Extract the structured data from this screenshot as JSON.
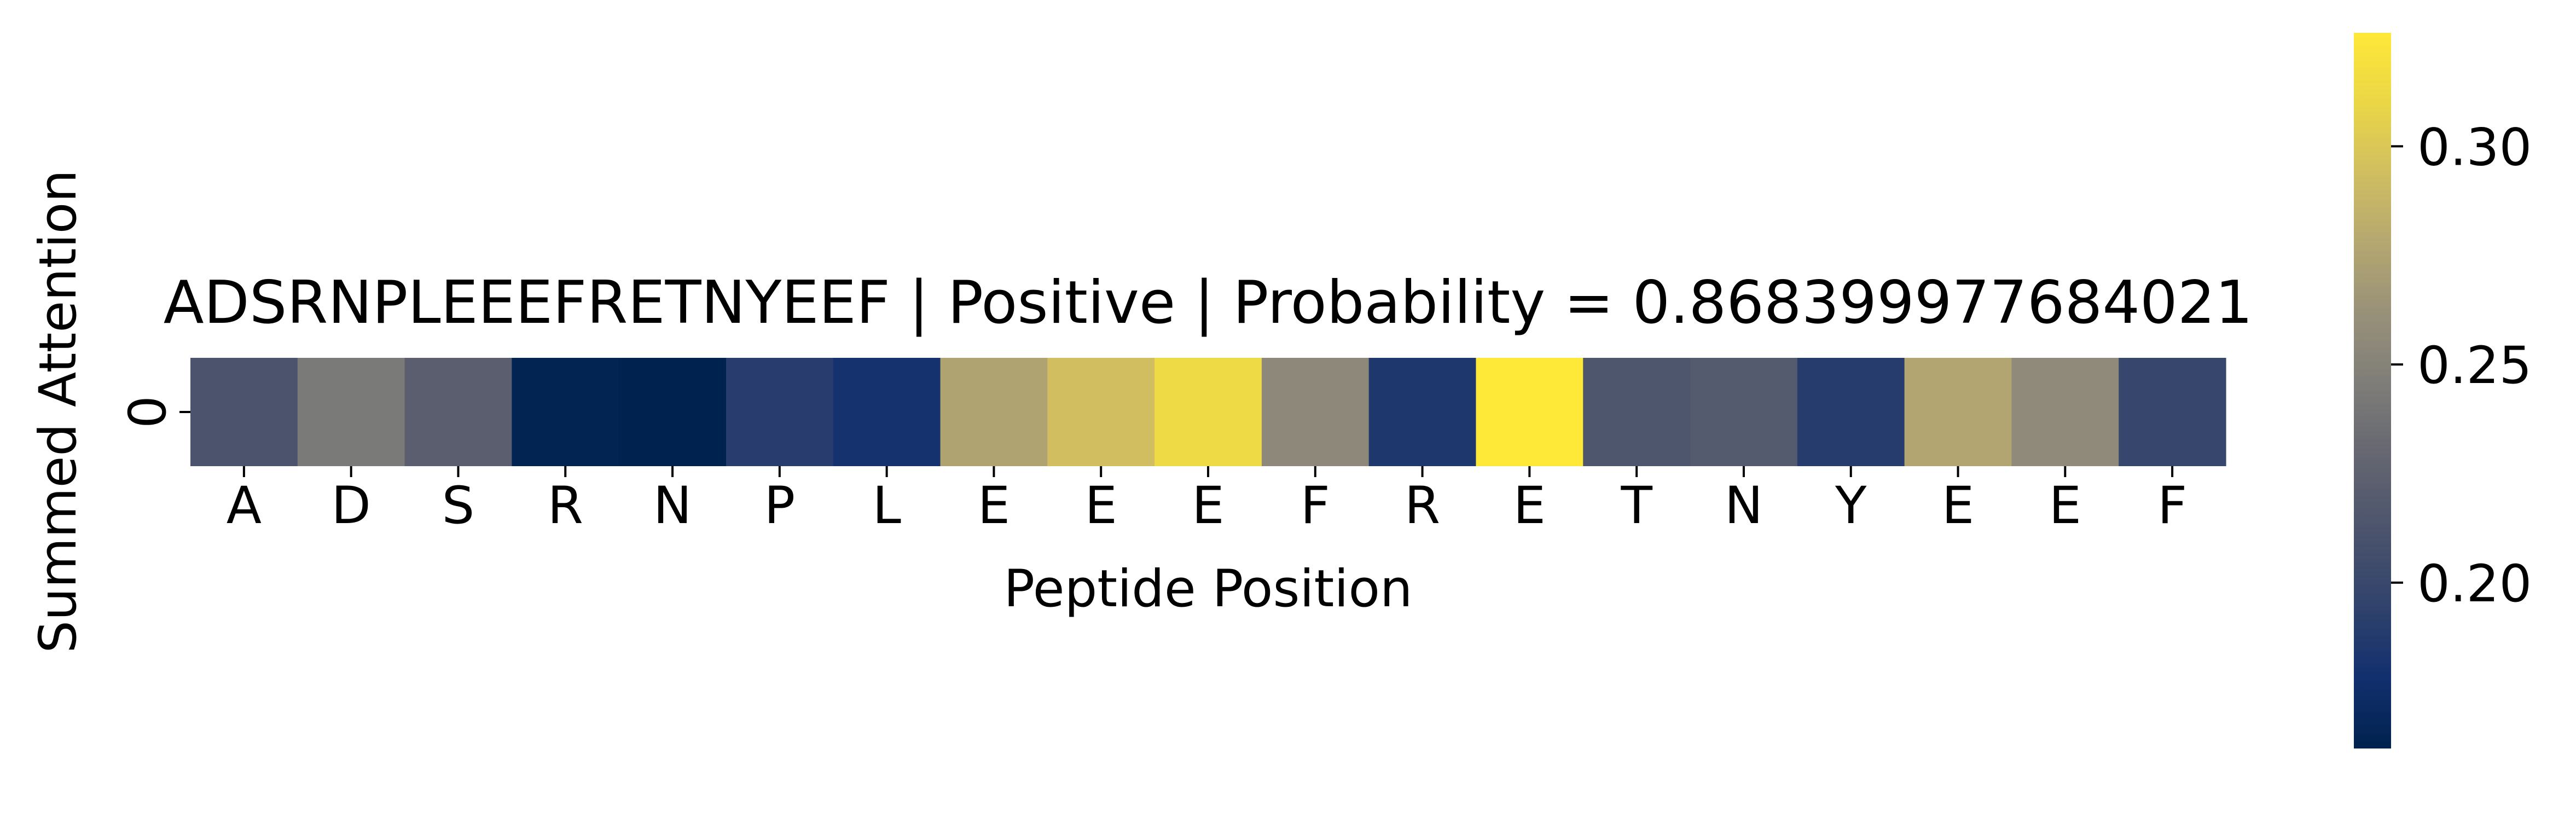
{
  "chart_data": {
    "type": "heatmap",
    "title": "ADSRNPLEEEFRETNYEEF | Positive | Probability = 0.868399977684021",
    "xlabel": "Peptide Position",
    "ylabel": "Summed Attention",
    "x_categories": [
      "A",
      "D",
      "S",
      "R",
      "N",
      "P",
      "L",
      "E",
      "E",
      "E",
      "F",
      "R",
      "E",
      "T",
      "N",
      "Y",
      "E",
      "E",
      "F"
    ],
    "y_categories": [
      "0"
    ],
    "values": [
      [
        0.212,
        0.243,
        0.222,
        0.164,
        0.161,
        0.19,
        0.18,
        0.275,
        0.294,
        0.313,
        0.255,
        0.185,
        0.326,
        0.214,
        0.219,
        0.189,
        0.276,
        0.256,
        0.198
      ]
    ],
    "colorbar": {
      "vmin": 0.162,
      "vmax": 0.326,
      "ticks": [
        0.2,
        0.25,
        0.3
      ],
      "tick_labels": [
        "0.20",
        "0.25",
        "0.30"
      ],
      "colormap": "cividis"
    }
  }
}
